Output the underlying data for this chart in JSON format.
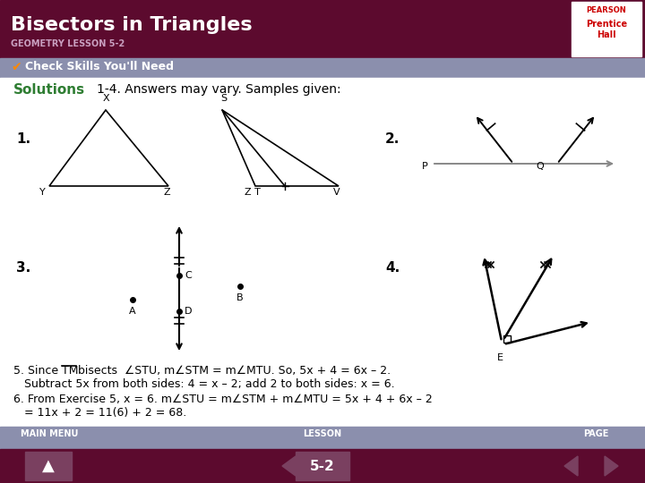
{
  "title": "Bisectors in Triangles",
  "subtitle": "GEOMETRY LESSON 5-2",
  "header_bg": "#5c0a2e",
  "subheader_bg": "#8b8fad",
  "footer_bg": "#8b8fad",
  "footer_dark": "#5c0a2e",
  "check_text": "Check Skills You'll Need",
  "solutions_text": "Solutions",
  "intro_text": "1-4. Answers may vary. Samples given:",
  "footer_main": "MAIN MENU",
  "footer_lesson": "LESSON",
  "footer_page": "PAGE",
  "footer_num": "5-2",
  "white": "#ffffff",
  "black": "#000000",
  "green": "#2e7d32",
  "gray": "#888888",
  "dark_maroon": "#5c0a2e",
  "btn_color": "#7a4060",
  "pearson_red": "#cc0000",
  "subtitle_color": "#c9a0c0",
  "orange": "#ff8800"
}
